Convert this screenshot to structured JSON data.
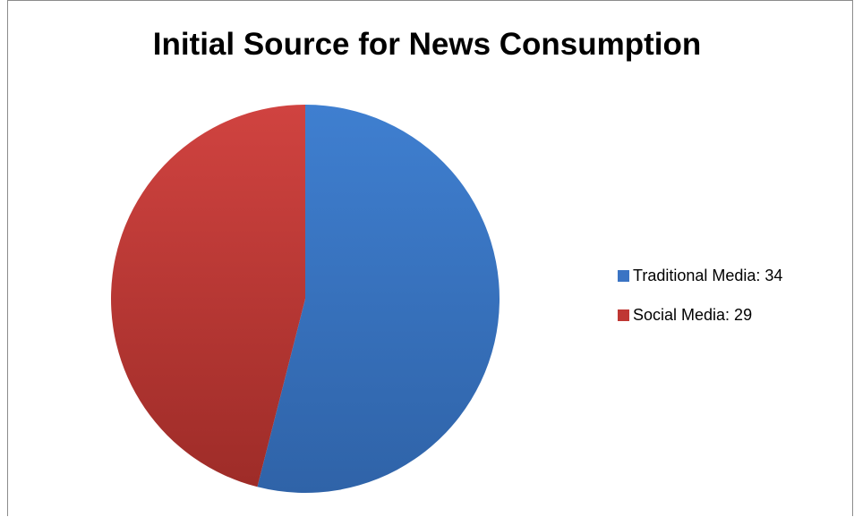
{
  "chart_data": {
    "type": "pie",
    "title": "Initial Source for News Consumption",
    "series": [
      {
        "name": "Traditional Media",
        "value": 34,
        "label": "Traditional Media: 34",
        "color": "#3b74c4"
      },
      {
        "name": "Social Media",
        "value": 29,
        "label": "Social Media: 29",
        "color": "#bf3733"
      }
    ],
    "legend_position": "right"
  }
}
